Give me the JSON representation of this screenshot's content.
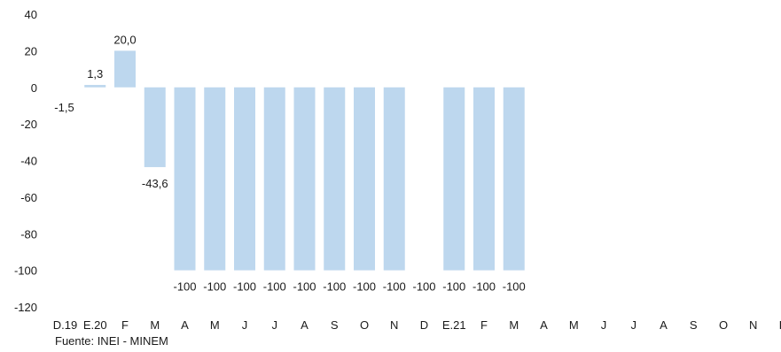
{
  "chart_data": {
    "type": "bar",
    "categories": [
      "D.19",
      "E.20",
      "F",
      "M",
      "A",
      "M",
      "J",
      "J",
      "A",
      "S",
      "O",
      "N",
      "D",
      "E.21",
      "F",
      "M",
      "A",
      "M",
      "J",
      "J",
      "A",
      "S",
      "O",
      "N",
      "D"
    ],
    "values": [
      -1.5,
      1.3,
      20.0,
      -43.6,
      -100,
      -100,
      -100,
      -100,
      -100,
      -100,
      -100,
      -100,
      -100,
      -100,
      -100,
      -100,
      null,
      null,
      null,
      null,
      null,
      null,
      null,
      null,
      null
    ],
    "data_labels": [
      "-1,5",
      "1,3",
      "20,0",
      "-43,6",
      "-100",
      "-100",
      "-100",
      "-100",
      "-100",
      "-100",
      "-100",
      "-100",
      "-100",
      "-100",
      "-100",
      "-100",
      "",
      "",
      "",
      "",
      "",
      "",
      "",
      "",
      ""
    ],
    "bar_visible": [
      false,
      true,
      true,
      true,
      true,
      true,
      true,
      true,
      true,
      true,
      true,
      true,
      false,
      true,
      true,
      true,
      false,
      false,
      false,
      false,
      false,
      false,
      false,
      false,
      false
    ],
    "yticks": [
      40,
      20,
      0,
      -20,
      -40,
      -60,
      -80,
      -100,
      -120
    ],
    "ytick_labels": [
      "40",
      "20",
      "0",
      "-20",
      "-40",
      "-60",
      "-80",
      "-100",
      "-120"
    ],
    "ylim": [
      -120,
      40
    ],
    "grid": false,
    "legend": "none",
    "bar_color": "#bdd7ee"
  },
  "source": "Fuente: INEI - MINEM"
}
